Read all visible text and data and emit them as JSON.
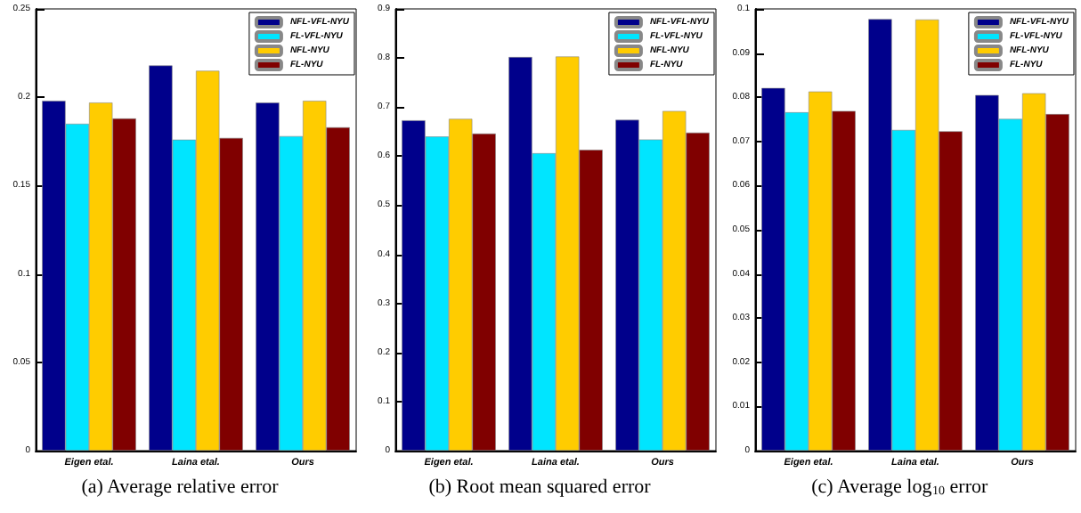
{
  "chart_data": [
    {
      "type": "bar",
      "title": "(a) Average relative error",
      "categories": [
        "Eigen etal.",
        "Laina etal.",
        "Ours"
      ],
      "series": [
        {
          "name": "NFL-VFL-NYU",
          "color": "#00008b",
          "values": [
            0.198,
            0.218,
            0.197
          ]
        },
        {
          "name": "FL-VFL-NYU",
          "color": "#00e5ff",
          "values": [
            0.185,
            0.176,
            0.178
          ]
        },
        {
          "name": "NFL-NYU",
          "color": "#ffcc00",
          "values": [
            0.197,
            0.215,
            0.198
          ]
        },
        {
          "name": "FL-NYU",
          "color": "#800000",
          "values": [
            0.188,
            0.177,
            0.183
          ]
        }
      ],
      "ylim": [
        0,
        0.25
      ],
      "yticks": [
        0,
        0.05,
        0.1,
        0.15,
        0.2,
        0.25
      ],
      "grid": false,
      "legend": "top right"
    },
    {
      "type": "bar",
      "title": "(b) Root mean squared error",
      "categories": [
        "Eigen etal.",
        "Laina etal.",
        "Ours"
      ],
      "series": [
        {
          "name": "NFL-VFL-NYU",
          "color": "#00008b",
          "values": [
            0.673,
            0.802,
            0.674
          ]
        },
        {
          "name": "FL-VFL-NYU",
          "color": "#00e5ff",
          "values": [
            0.64,
            0.606,
            0.634
          ]
        },
        {
          "name": "NFL-NYU",
          "color": "#ffcc00",
          "values": [
            0.676,
            0.803,
            0.692
          ]
        },
        {
          "name": "FL-NYU",
          "color": "#800000",
          "values": [
            0.646,
            0.613,
            0.648
          ]
        }
      ],
      "ylim": [
        0,
        0.9
      ],
      "yticks": [
        0,
        0.1,
        0.2,
        0.3,
        0.4,
        0.5,
        0.6,
        0.7,
        0.8,
        0.9
      ],
      "grid": false,
      "legend": "top right"
    },
    {
      "type": "bar",
      "title": "(c) Average log$_{10}$ error",
      "categories": [
        "Eigen etal.",
        "Laina etal.",
        "Ours"
      ],
      "series": [
        {
          "name": "NFL-VFL-NYU",
          "color": "#00008b",
          "values": [
            0.0821,
            0.0977,
            0.0805
          ]
        },
        {
          "name": "FL-VFL-NYU",
          "color": "#00e5ff",
          "values": [
            0.0766,
            0.0726,
            0.0751
          ]
        },
        {
          "name": "NFL-NYU",
          "color": "#ffcc00",
          "values": [
            0.0813,
            0.0976,
            0.0809
          ]
        },
        {
          "name": "FL-NYU",
          "color": "#800000",
          "values": [
            0.0769,
            0.0723,
            0.0762
          ]
        }
      ],
      "ylim": [
        0,
        0.1
      ],
      "yticks": [
        0,
        0.01,
        0.02,
        0.03,
        0.04,
        0.05,
        0.06,
        0.07,
        0.08,
        0.09,
        0.1
      ],
      "grid": false,
      "legend": "top right"
    }
  ]
}
